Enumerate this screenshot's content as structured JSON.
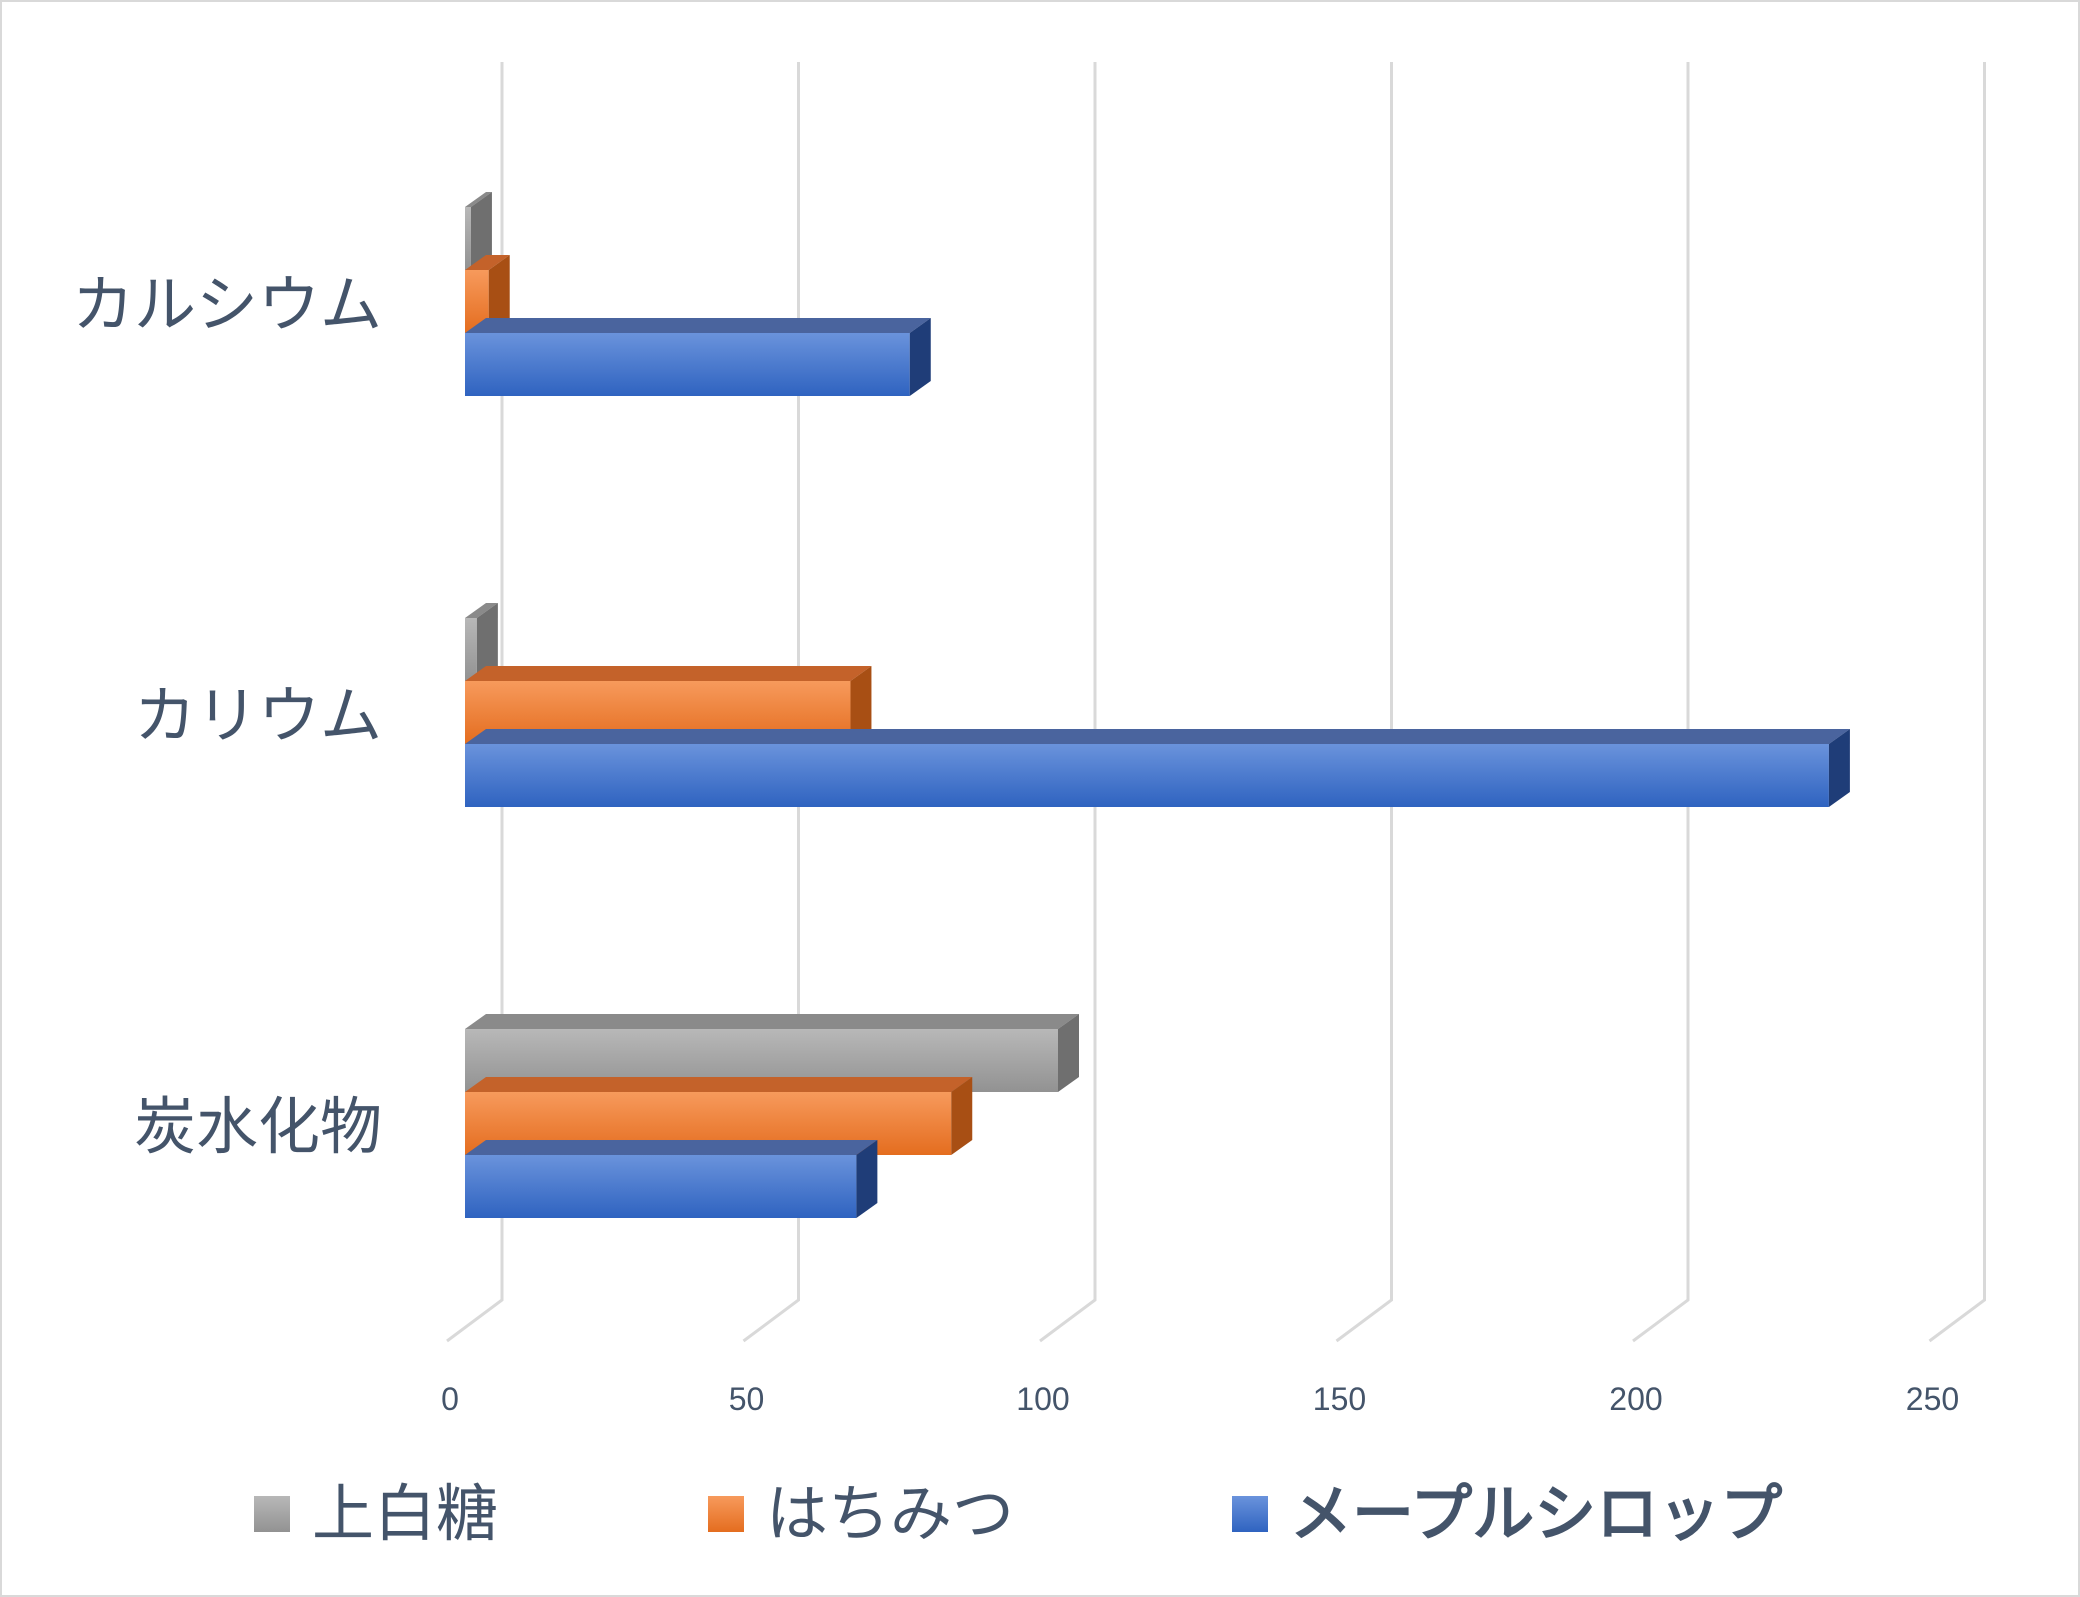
{
  "chart_data": {
    "type": "bar",
    "orientation": "horizontal",
    "style": "3d-clustered",
    "categories": [
      "カルシウム",
      "カリウム",
      "炭水化物"
    ],
    "series": [
      {
        "name": "上白糖",
        "values": [
          1,
          2,
          100
        ],
        "color": "#a5a5a5"
      },
      {
        "name": "はちみつ",
        "values": [
          4,
          65,
          82
        ],
        "color": "#ed7d31"
      },
      {
        "name": "メープルシロップ",
        "values": [
          75,
          230,
          66
        ],
        "color": "#4472c4"
      }
    ],
    "xlim": [
      0,
      250
    ],
    "x_ticks": [
      "0",
      "50",
      "100",
      "150",
      "200",
      "250"
    ],
    "grid": true,
    "legend": "bottom"
  }
}
